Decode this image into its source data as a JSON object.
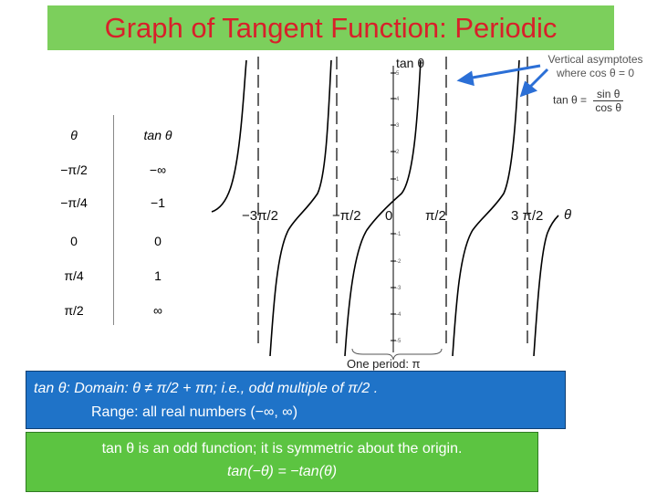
{
  "title": "Graph of Tangent Function: Periodic",
  "graph": {
    "y_axis_label": "tan θ",
    "x_axis_label": "θ",
    "x_tick_labels": [
      "−3π/2",
      "−π/2",
      "0",
      "π/2",
      "3 π/2"
    ],
    "y_tick_labels": [
      "5",
      "4",
      "3",
      "2",
      "1",
      "-1",
      "-2",
      "-3",
      "-4",
      "-5"
    ],
    "asymptote_note": "Vertical asymptotes where cos θ = 0",
    "identity": {
      "lhs": "tan θ =",
      "numerator": "sin θ",
      "denominator": "cos θ"
    },
    "period_label": "One period: π"
  },
  "table": {
    "headers": [
      "θ",
      "tan θ"
    ],
    "rows": [
      [
        "−π/2",
        "−∞"
      ],
      [
        "−π/4",
        "−1"
      ],
      [
        "0",
        "0"
      ],
      [
        "π/4",
        "1"
      ],
      [
        "π/2",
        "∞"
      ]
    ]
  },
  "domain_box": {
    "line1": "tan θ:  Domain: θ ≠ π/2 + πn; i.e., odd multiple of π/2 .",
    "line2": "Range: all real numbers (−∞, ∞)"
  },
  "odd_box": {
    "line1": "tan θ is an odd function; it is symmetric about the origin.",
    "line2": "tan(−θ) = −tan(θ)"
  },
  "colors": {
    "title_bg": "#7ccf5c",
    "title_text": "#d8202a",
    "domain_bg": "#1f73c8",
    "odd_bg": "#5cc441",
    "callout_arrow": "#2b6fd6"
  }
}
